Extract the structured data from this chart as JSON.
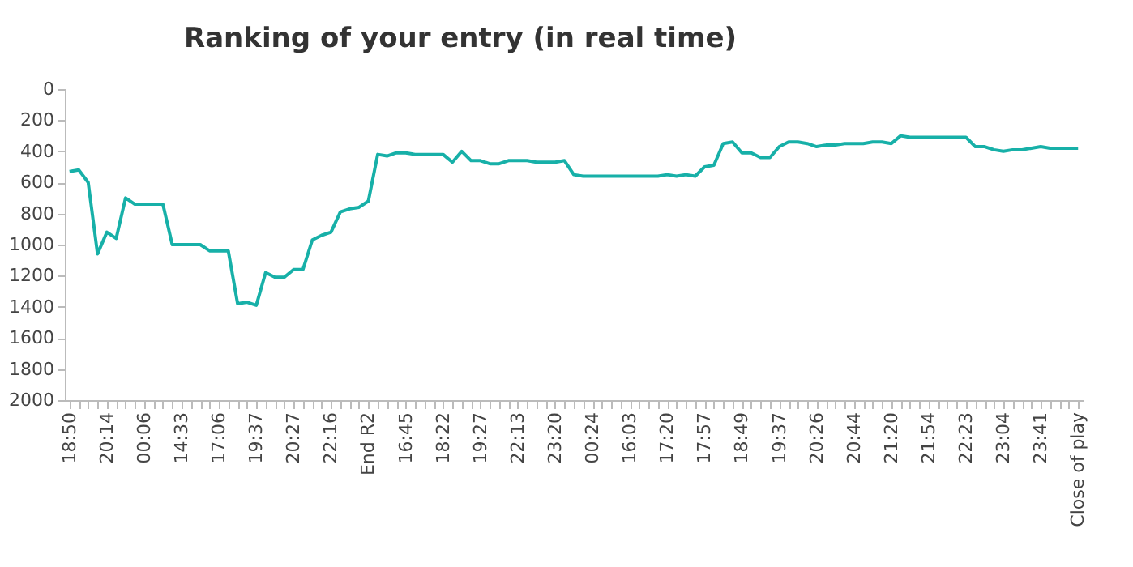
{
  "chart_data": {
    "type": "line",
    "title": "Ranking of your entry (in real time)",
    "categories": [
      "18:50",
      null,
      null,
      null,
      "20:14",
      null,
      null,
      null,
      "00:06",
      null,
      null,
      null,
      "14:33",
      null,
      null,
      null,
      "17:06",
      null,
      null,
      null,
      "19:37",
      null,
      null,
      null,
      "20:27",
      null,
      null,
      null,
      "22:16",
      null,
      null,
      null,
      "End R2",
      null,
      null,
      null,
      "16:45",
      null,
      null,
      null,
      "18:22",
      null,
      null,
      null,
      "19:27",
      null,
      null,
      null,
      "22:13",
      null,
      null,
      null,
      "23:20",
      null,
      null,
      null,
      "00:24",
      null,
      null,
      null,
      "16:03",
      null,
      null,
      null,
      "17:20",
      null,
      null,
      null,
      "17:57",
      null,
      null,
      null,
      "18:49",
      null,
      null,
      null,
      "19:37",
      null,
      null,
      null,
      "20:26",
      null,
      null,
      null,
      "20:44",
      null,
      null,
      null,
      "21:20",
      null,
      null,
      null,
      "21:54",
      null,
      null,
      null,
      "22:23",
      null,
      null,
      null,
      "23:04",
      null,
      null,
      null,
      "23:41",
      null,
      null,
      null,
      "Close of play"
    ],
    "series": [
      {
        "color": "#17b0a8",
        "values": [
          530,
          520,
          600,
          1060,
          920,
          960,
          700,
          740,
          740,
          740,
          740,
          1000,
          1000,
          1000,
          1000,
          1040,
          1040,
          1040,
          1380,
          1370,
          1390,
          1180,
          1210,
          1210,
          1160,
          1160,
          970,
          940,
          920,
          790,
          770,
          760,
          720,
          420,
          430,
          410,
          410,
          420,
          420,
          420,
          420,
          470,
          400,
          460,
          460,
          480,
          480,
          460,
          460,
          460,
          470,
          470,
          470,
          460,
          550,
          560,
          560,
          560,
          560,
          560,
          560,
          560,
          560,
          560,
          550,
          560,
          550,
          560,
          500,
          490,
          350,
          340,
          410,
          410,
          440,
          440,
          370,
          340,
          340,
          350,
          370,
          360,
          360,
          350,
          350,
          350,
          340,
          340,
          350,
          300,
          310,
          310,
          310,
          310,
          310,
          310,
          310,
          370,
          370,
          390,
          400,
          390,
          390,
          380,
          370,
          380,
          380,
          380,
          380
        ]
      }
    ],
    "ylim": [
      2000,
      0
    ],
    "yticks": [
      0,
      200,
      400,
      600,
      800,
      1000,
      1200,
      1400,
      1600,
      1800,
      2000
    ],
    "grid": false,
    "marker": "none",
    "line_style": "solid"
  }
}
